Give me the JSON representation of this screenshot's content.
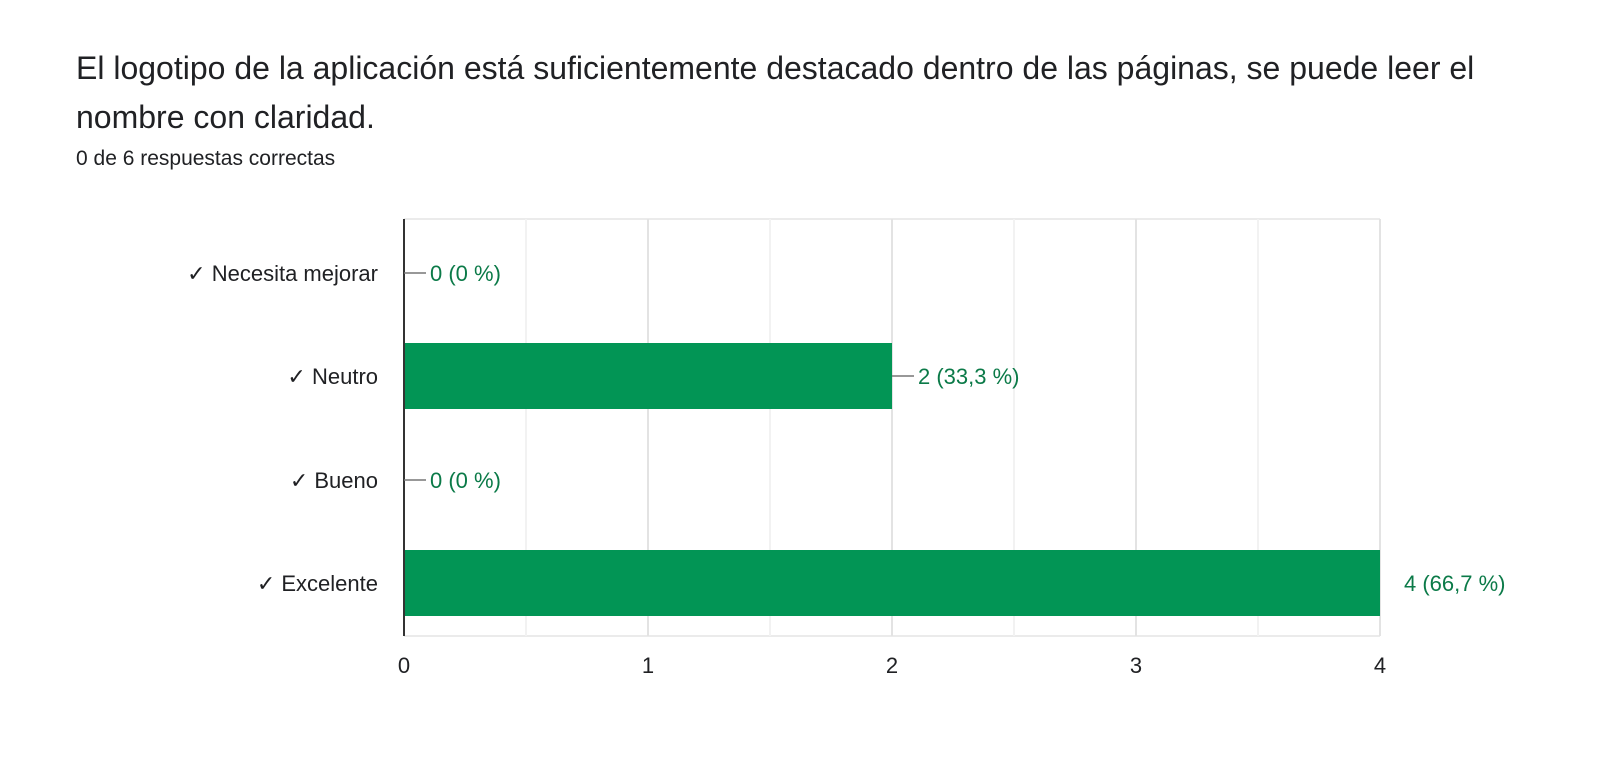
{
  "question": {
    "title": "El logotipo de la aplicación está suficientemente destacado dentro de las páginas, se puede leer el nombre con claridad.",
    "score_summary": "0 de 6 respuestas correctas"
  },
  "colors": {
    "bar": "#029555",
    "data_label": "#0b7a48",
    "grid": "#ebebeb",
    "axis": "#333333"
  },
  "chart_data": {
    "type": "bar",
    "orientation": "horizontal",
    "categories": [
      "✓ Necesita mejorar",
      "✓ Neutro",
      "✓ Bueno",
      "✓ Excelente"
    ],
    "values": [
      0,
      2,
      0,
      4
    ],
    "data_labels": [
      "0 (0 %)",
      "2 (33,3 %)",
      "0 (0 %)",
      "4 (66,7 %)"
    ],
    "x_ticks": [
      0,
      1,
      2,
      3,
      4
    ],
    "xlim": [
      0,
      4
    ],
    "grid": true
  }
}
